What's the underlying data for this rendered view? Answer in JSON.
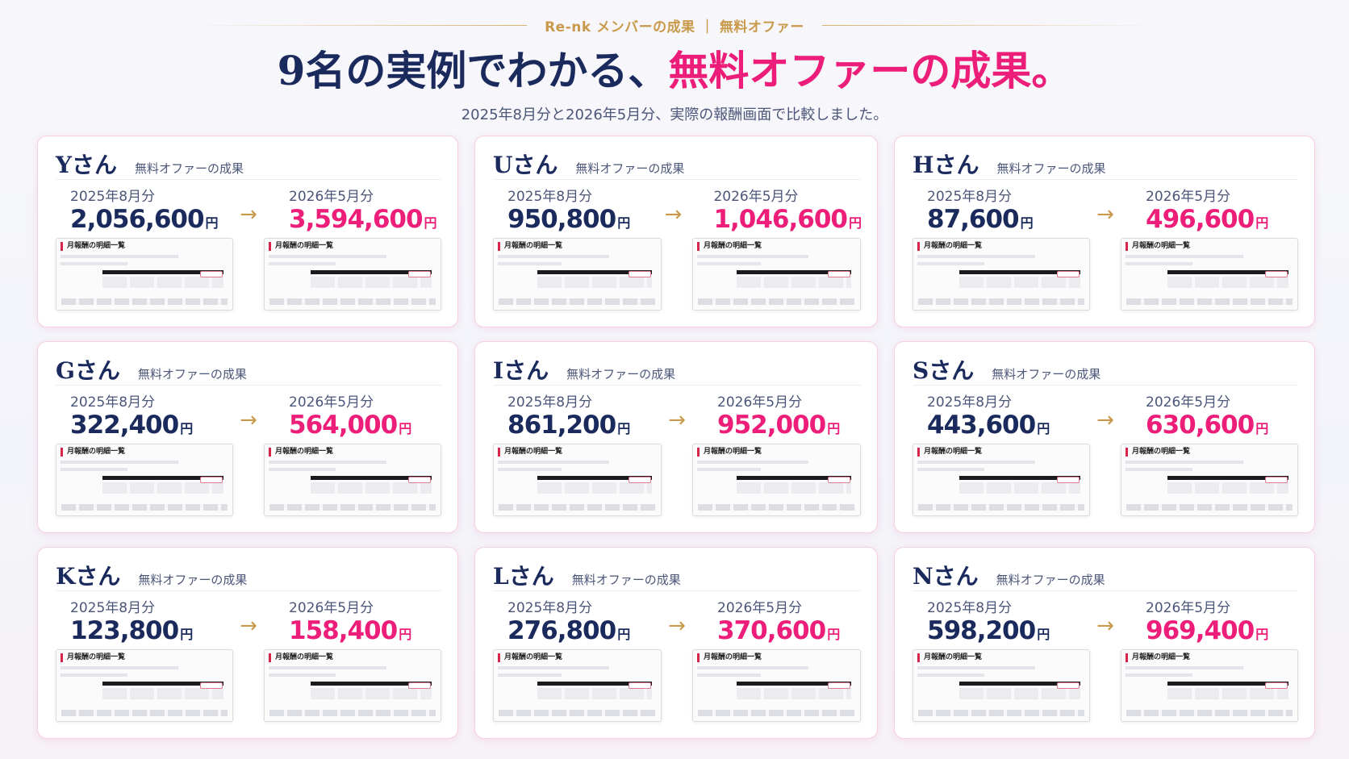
{
  "header": {
    "eyebrow": "Re-nk メンバーの成果 ｜ 無料オファー",
    "headline_main": "9名の実例でわかる、",
    "headline_accent": "無料オファーの成果。",
    "subhead": "2025年8月分と2026年5月分、実際の報酬画面で比較しました。"
  },
  "colors": {
    "navy": "#1b2a5c",
    "accent": "#ec1e79",
    "gold": "#c99a4c"
  },
  "common": {
    "tag": "無料オファーの成果",
    "before_period": "2025年8月分",
    "after_period": "2026年5月分",
    "unit": "円",
    "arrow": "→",
    "screenshot_title": "月報酬の明細一覧"
  },
  "cards": [
    {
      "name": "Yさん",
      "before": "2,056,600",
      "after": "3,594,600"
    },
    {
      "name": "Uさん",
      "before": "950,800",
      "after": "1,046,600"
    },
    {
      "name": "Hさん",
      "before": "87,600",
      "after": "496,600"
    },
    {
      "name": "Gさん",
      "before": "322,400",
      "after": "564,000"
    },
    {
      "name": "Iさん",
      "before": "861,200",
      "after": "952,000"
    },
    {
      "name": "Sさん",
      "before": "443,600",
      "after": "630,600"
    },
    {
      "name": "Kさん",
      "before": "123,800",
      "after": "158,400"
    },
    {
      "name": "Lさん",
      "before": "276,800",
      "after": "370,600"
    },
    {
      "name": "Nさん",
      "before": "598,200",
      "after": "969,400"
    }
  ]
}
